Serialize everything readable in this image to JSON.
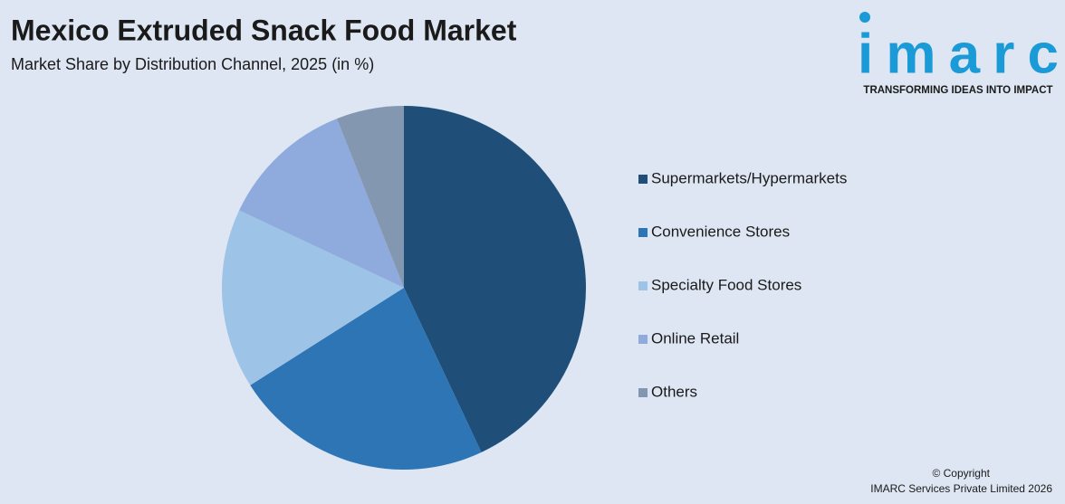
{
  "chart_data": {
    "type": "pie",
    "title": "Mexico Extruded Snack Food Market",
    "subtitle": "Market Share by Distribution Channel, 2025 (in %)",
    "categories": [
      "Supermarkets/Hypermarkets",
      "Convenience Stores",
      "Specialty Food Stores",
      "Online Retail",
      "Others"
    ],
    "values": [
      43,
      23,
      16,
      12,
      6
    ],
    "colors": [
      "#1f4e79",
      "#2e75b6",
      "#9dc3e6",
      "#8faadc",
      "#8497b0"
    ],
    "legend": "right"
  },
  "brand": {
    "logo": "imarc",
    "tagline": "TRANSFORMING IDEAS INTO IMPACT"
  },
  "footer": {
    "copyright": "© Copyright",
    "company": "IMARC Services Private Limited 2026"
  }
}
